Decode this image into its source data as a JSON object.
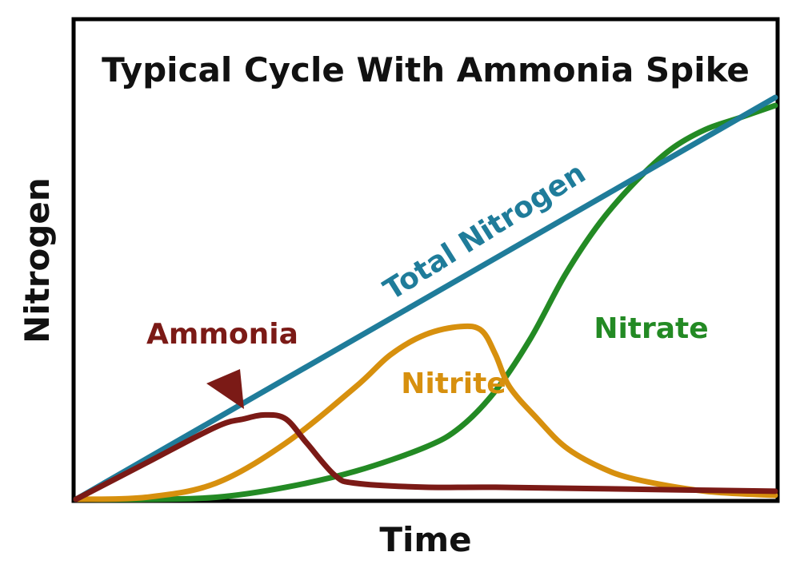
{
  "chart_data": {
    "type": "line",
    "title": "Typical Cycle With Ammonia Spike",
    "xlabel": "Time",
    "ylabel": "Nitrogen",
    "xlim": [
      0,
      100
    ],
    "ylim": [
      0,
      100
    ],
    "x_ticks": false,
    "y_ticks": false,
    "grid": false,
    "legend": "none",
    "series": [
      {
        "name": "Total Nitrogen",
        "color": "#1f7c9a",
        "x": [
          0,
          100
        ],
        "y": [
          0,
          100
        ]
      },
      {
        "name": "Ammonia",
        "color": "#7b1a16",
        "x": [
          0,
          10,
          20,
          24,
          27,
          30,
          33,
          37,
          40,
          50,
          60,
          80,
          100
        ],
        "y": [
          0,
          9,
          18,
          20,
          21,
          20,
          14,
          6,
          4,
          3,
          3,
          2.5,
          2
        ]
      },
      {
        "name": "Nitrite",
        "color": "#d7900e",
        "x": [
          0,
          10,
          20,
          30,
          40,
          45,
          50,
          55,
          58,
          60,
          62,
          66,
          70,
          75,
          80,
          90,
          100
        ],
        "y": [
          0,
          0.5,
          4,
          14,
          28,
          36,
          41,
          43,
          42,
          36,
          28,
          20,
          13,
          8,
          5,
          2,
          1
        ]
      },
      {
        "name": "Nitrate",
        "color": "#238a24",
        "x": [
          0,
          10,
          20,
          30,
          40,
          50,
          55,
          60,
          65,
          70,
          75,
          80,
          85,
          90,
          95,
          100
        ],
        "y": [
          0,
          0,
          0.5,
          3,
          7,
          13,
          18,
          27,
          40,
          56,
          69,
          79,
          87,
          92,
          95,
          98
        ]
      }
    ],
    "annotations": [
      {
        "text": "Ammonia",
        "color": "#7b1a16",
        "arrow_target_series": "Ammonia"
      },
      {
        "text": "Nitrite",
        "color": "#d7900e"
      },
      {
        "text": "Nitrate",
        "color": "#238a24"
      },
      {
        "text": "Total Nitrogen",
        "color": "#1f7c9a"
      }
    ]
  }
}
